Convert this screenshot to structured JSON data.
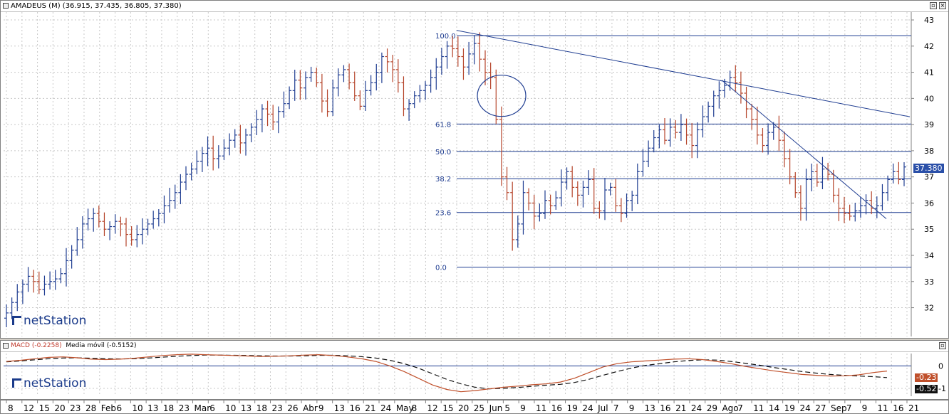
{
  "price_title": {
    "symbol": "AMADEUS (M)",
    "values": "(36.915, 37.435, 36.805, 37.380)"
  },
  "macd_title": {
    "label": "MACD (-0.2258)",
    "ma_label": "Media móvil (-0.5152)"
  },
  "logo_text": "netStation",
  "last_price": "37.380",
  "macd_values": {
    "macd": "-0.23",
    "signal": "-0.52"
  },
  "fib_labels": [
    "100.0",
    "61.8",
    "50.0",
    "38.2",
    "23.6",
    "0.0"
  ],
  "colors": {
    "up": "#1f3d91",
    "down": "#b5442a",
    "line": "#1f3d91",
    "macd": "#c0502b",
    "signal": "#111111"
  },
  "chart_data": {
    "type": "ohlc",
    "title": "AMADEUS (M)",
    "ylim": [
      30.9,
      43.3
    ],
    "y_ticks": [
      32,
      33,
      34,
      35,
      36,
      37,
      38,
      39,
      40,
      41,
      42,
      43
    ],
    "date_ticks": [
      "8",
      "12",
      "15",
      "20",
      "23",
      "28",
      "Feb",
      "6",
      "10",
      "13",
      "18",
      "23",
      "Mar",
      "6",
      "10",
      "13",
      "18",
      "23",
      "26",
      "Abr",
      "9",
      "13",
      "16",
      "21",
      "24",
      "May",
      "8",
      "12",
      "15",
      "20",
      "25",
      "Jun",
      "5",
      "9",
      "11",
      "16",
      "19",
      "24",
      "Jul",
      "7",
      "9",
      "13",
      "16",
      "21",
      "24",
      "29",
      "Ago",
      "7",
      "11",
      "14",
      "19",
      "24",
      "27",
      "Sep",
      "7",
      "9",
      "11",
      "16",
      "21"
    ],
    "series": [
      {
        "name": "Price",
        "type": "ohlc",
        "close_path": [
          31.8,
          32.2,
          32.6,
          32.9,
          33.2,
          33.0,
          32.7,
          32.9,
          33.0,
          33.1,
          33.3,
          33.8,
          34.2,
          34.6,
          35.2,
          35.4,
          35.6,
          35.3,
          35.0,
          35.1,
          35.3,
          35.2,
          34.8,
          34.6,
          34.8,
          35.0,
          35.2,
          35.4,
          35.6,
          35.9,
          36.1,
          36.4,
          36.8,
          37.1,
          37.3,
          37.6,
          37.9,
          38.1,
          37.7,
          37.8,
          38.1,
          38.4,
          38.6,
          38.3,
          38.6,
          38.9,
          39.2,
          39.6,
          39.4,
          39.1,
          39.5,
          39.8,
          40.3,
          40.7,
          40.4,
          40.8,
          41.0,
          40.6,
          39.9,
          39.5,
          40.4,
          40.9,
          41.1,
          40.6,
          40.1,
          39.7,
          40.3,
          40.6,
          41.0,
          41.6,
          41.4,
          41.1,
          40.6,
          39.6,
          39.8,
          40.1,
          40.3,
          40.5,
          40.8,
          41.2,
          41.6,
          42.0,
          41.9,
          41.6,
          41.2,
          41.7,
          42.1,
          41.5,
          41.0,
          40.8,
          39.2,
          37.0,
          36.4,
          34.6,
          35.2,
          36.4,
          36.0,
          35.5,
          35.6,
          36.1,
          35.9,
          36.2,
          36.8,
          37.2,
          36.6,
          36.3,
          36.6,
          36.9,
          35.8,
          35.7,
          36.5,
          36.6,
          35.9,
          35.6,
          36.1,
          36.3,
          37.2,
          37.6,
          38.1,
          38.5,
          38.8,
          38.4,
          38.9,
          38.7,
          39.0,
          38.6,
          38.2,
          38.8,
          39.3,
          39.7,
          40.1,
          40.3,
          40.5,
          40.8,
          40.6,
          40.2,
          39.6,
          39.2,
          38.6,
          38.2,
          38.7,
          38.9,
          38.4,
          37.7,
          37.0,
          36.4,
          35.8,
          36.9,
          37.2,
          36.8,
          37.3,
          37.1,
          36.3,
          35.8,
          35.6,
          35.5,
          35.7,
          35.9,
          36.1,
          35.8,
          35.9,
          36.4,
          36.9,
          37.2,
          36.9,
          37.38
        ]
      }
    ],
    "fibonacci": {
      "high": 42.4,
      "low": 33.55,
      "levels": [
        100.0,
        61.8,
        50.0,
        38.2,
        23.6,
        0.0
      ]
    },
    "macd": {
      "ylim": [
        -1.35,
        0.55
      ],
      "y_ticks": [
        0,
        -1
      ],
      "macd": [
        0.2,
        0.25,
        0.32,
        0.38,
        0.4,
        0.36,
        0.3,
        0.28,
        0.3,
        0.34,
        0.4,
        0.46,
        0.5,
        0.52,
        0.5,
        0.48,
        0.46,
        0.44,
        0.42,
        0.43,
        0.45,
        0.48,
        0.5,
        0.46,
        0.4,
        0.32,
        0.2,
        0.0,
        -0.25,
        -0.55,
        -0.85,
        -1.05,
        -1.15,
        -1.1,
        -1.02,
        -0.95,
        -0.9,
        -0.84,
        -0.8,
        -0.72,
        -0.55,
        -0.3,
        -0.05,
        0.1,
        0.18,
        0.22,
        0.26,
        0.3,
        0.32,
        0.28,
        0.2,
        0.1,
        -0.02,
        -0.12,
        -0.22,
        -0.3,
        -0.38,
        -0.42,
        -0.45,
        -0.44,
        -0.4,
        -0.3,
        -0.23
      ],
      "signal": [
        0.18,
        0.22,
        0.27,
        0.32,
        0.35,
        0.36,
        0.34,
        0.32,
        0.31,
        0.32,
        0.35,
        0.39,
        0.43,
        0.46,
        0.48,
        0.48,
        0.47,
        0.46,
        0.45,
        0.44,
        0.44,
        0.45,
        0.47,
        0.47,
        0.45,
        0.41,
        0.35,
        0.25,
        0.1,
        -0.1,
        -0.35,
        -0.6,
        -0.8,
        -0.95,
        -1.02,
        -1.0,
        -0.96,
        -0.91,
        -0.86,
        -0.82,
        -0.74,
        -0.6,
        -0.42,
        -0.25,
        -0.1,
        0.02,
        0.1,
        0.18,
        0.24,
        0.27,
        0.26,
        0.2,
        0.12,
        0.03,
        -0.07,
        -0.16,
        -0.25,
        -0.32,
        -0.38,
        -0.42,
        -0.45,
        -0.48,
        -0.52
      ]
    }
  }
}
